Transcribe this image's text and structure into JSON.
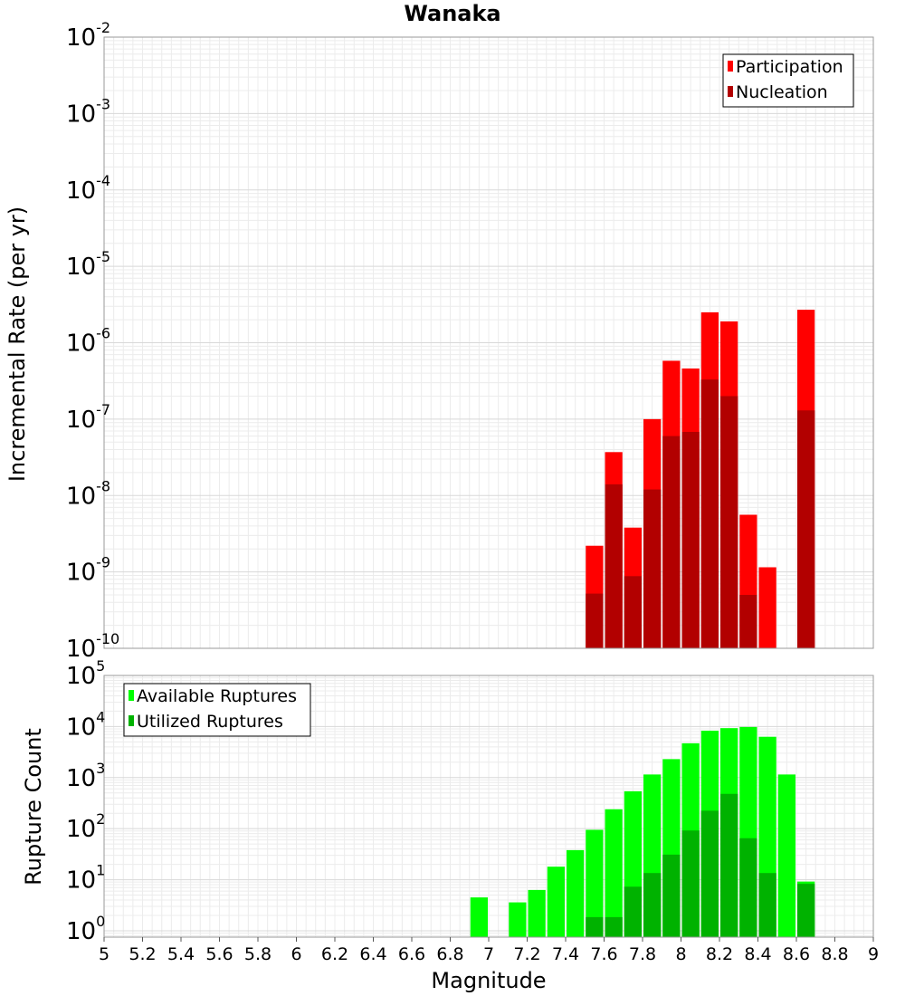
{
  "chart_data": [
    {
      "type": "bar",
      "title": "Wanaka",
      "ylabel": "Incremental Rate (per yr)",
      "y_scale": "log",
      "ylim": [
        1e-10,
        0.01
      ],
      "y_ticks": [
        {
          "base": "10",
          "exp": "-2"
        },
        {
          "base": "10",
          "exp": "-3"
        },
        {
          "base": "10",
          "exp": "-4"
        },
        {
          "base": "10",
          "exp": "-5"
        },
        {
          "base": "10",
          "exp": "-6"
        },
        {
          "base": "10",
          "exp": "-7"
        },
        {
          "base": "10",
          "exp": "-8"
        },
        {
          "base": "10",
          "exp": "-9"
        },
        {
          "base": "10",
          "exp": "-10"
        }
      ],
      "xlim": [
        5,
        9
      ],
      "bar_width": 0.1,
      "grid": true,
      "legend_position": "top-right",
      "series": [
        {
          "name": "Participation",
          "color": "#ff0000",
          "points": [
            [
              7.55,
              2.2e-09
            ],
            [
              7.65,
              3.7e-08
            ],
            [
              7.75,
              3.8e-09
            ],
            [
              7.85,
              1e-07
            ],
            [
              7.95,
              5.8e-07
            ],
            [
              8.05,
              4.6e-07
            ],
            [
              8.15,
              2.5e-06
            ],
            [
              8.25,
              1.9e-06
            ],
            [
              8.35,
              5.6e-09
            ],
            [
              8.45,
              1.15e-09
            ],
            [
              8.65,
              2.7e-06
            ]
          ]
        },
        {
          "name": "Nucleation",
          "color": "#b20000",
          "points": [
            [
              7.55,
              5.2e-10
            ],
            [
              7.65,
              1.4e-08
            ],
            [
              7.75,
              8.8e-10
            ],
            [
              7.85,
              1.2e-08
            ],
            [
              7.95,
              6e-08
            ],
            [
              8.05,
              6.8e-08
            ],
            [
              8.15,
              3.3e-07
            ],
            [
              8.25,
              2e-07
            ],
            [
              8.35,
              5e-10
            ],
            [
              8.65,
              1.3e-07
            ]
          ]
        }
      ]
    },
    {
      "type": "bar",
      "xlabel": "Magnitude",
      "ylabel": "Rupture Count",
      "y_scale": "log",
      "ylim": [
        0.75,
        100000
      ],
      "y_ticks": [
        {
          "base": "10",
          "exp": "5"
        },
        {
          "base": "10",
          "exp": "4"
        },
        {
          "base": "10",
          "exp": "3"
        },
        {
          "base": "10",
          "exp": "2"
        },
        {
          "base": "10",
          "exp": "1"
        },
        {
          "base": "10",
          "exp": "0"
        }
      ],
      "xlim": [
        5,
        9
      ],
      "x_ticks": [
        "5",
        "5.2",
        "5.4",
        "5.6",
        "5.8",
        "6",
        "6.2",
        "6.4",
        "6.6",
        "6.8",
        "7",
        "7.2",
        "7.4",
        "7.6",
        "7.8",
        "8",
        "8.2",
        "8.4",
        "8.6",
        "8.8",
        "9"
      ],
      "bar_width": 0.1,
      "grid": true,
      "legend_position": "top-left",
      "series": [
        {
          "name": "Available Ruptures",
          "color": "#00ff00",
          "points": [
            [
              6.95,
              4.5
            ],
            [
              7.15,
              3.6
            ],
            [
              7.25,
              6.3
            ],
            [
              7.35,
              18
            ],
            [
              7.45,
              38
            ],
            [
              7.55,
              95
            ],
            [
              7.65,
              240
            ],
            [
              7.75,
              540
            ],
            [
              7.85,
              1150
            ],
            [
              7.95,
              2300
            ],
            [
              8.05,
              4700
            ],
            [
              8.15,
              8300
            ],
            [
              8.25,
              9300
            ],
            [
              8.35,
              9800
            ],
            [
              8.45,
              6300
            ],
            [
              8.55,
              1150
            ],
            [
              8.65,
              9.2
            ]
          ]
        },
        {
          "name": "Utilized Ruptures",
          "color": "#00b200",
          "points": [
            [
              7.55,
              1.85
            ],
            [
              7.65,
              1.85
            ],
            [
              7.75,
              7.3
            ],
            [
              7.85,
              13.5
            ],
            [
              7.95,
              31
            ],
            [
              8.05,
              92
            ],
            [
              8.15,
              225
            ],
            [
              8.25,
              480
            ],
            [
              8.35,
              65
            ],
            [
              8.45,
              13.5
            ],
            [
              8.65,
              8.3
            ]
          ]
        }
      ]
    }
  ]
}
